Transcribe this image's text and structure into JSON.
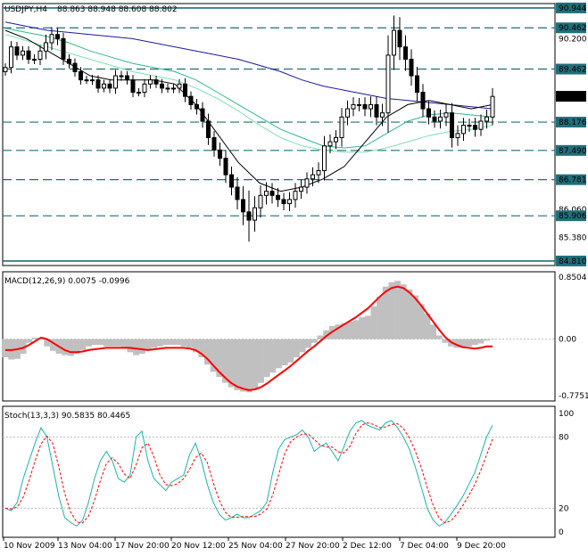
{
  "chart_data": {
    "type": "candlestick",
    "symbol_label": "USDJPY,H4",
    "ohlc_label": "88.863 88.948 88.608 88.802",
    "current_price": "88.802",
    "x_labels": [
      "10 Nov 2009",
      "13 Nov 04:00",
      "17 Nov 20:00",
      "20 Nov 12:00",
      "25 Nov 04:00",
      "27 Nov 20:00",
      "2 Dec 12:00",
      "7 Dec 04:00",
      "9 Dec 20:00"
    ],
    "price_axis": {
      "range": [
        84.7,
        91.05
      ],
      "tick_labels": [
        {
          "value": 90.2,
          "label": "90.200"
        },
        {
          "value": 86.06,
          "label": "86.060"
        },
        {
          "value": 85.38,
          "label": "85.380"
        }
      ],
      "level_labels": [
        {
          "value": 90.944,
          "label": "90.944"
        },
        {
          "value": 90.462,
          "label": "90.462"
        },
        {
          "value": 89.462,
          "label": "89.462"
        },
        {
          "value": 88.176,
          "label": "88.176"
        },
        {
          "value": 87.49,
          "label": "87.490"
        },
        {
          "value": 86.781,
          "label": "86.781"
        },
        {
          "value": 85.906,
          "label": "85.906"
        },
        {
          "value": 84.81,
          "label": "84.810"
        }
      ]
    },
    "levels": [
      {
        "value": 90.944,
        "style": "solid"
      },
      {
        "value": 90.462,
        "style": "dashed"
      },
      {
        "value": 89.462,
        "style": "dashed"
      },
      {
        "value": 88.176,
        "style": "dashed"
      },
      {
        "value": 87.49,
        "style": "dashed"
      },
      {
        "value": 86.781,
        "style": "dashed"
      },
      {
        "value": 85.906,
        "style": "dashed"
      },
      {
        "value": 84.81,
        "style": "solid"
      }
    ],
    "close_series": [
      89.5,
      90.0,
      89.8,
      89.9,
      89.7,
      89.7,
      89.9,
      90.1,
      90.3,
      90.2,
      89.7,
      89.6,
      89.4,
      89.2,
      89.2,
      89.2,
      89.0,
      89.1,
      89.0,
      89.3,
      89.3,
      89.2,
      88.9,
      88.9,
      89.1,
      89.2,
      89.1,
      89.0,
      89.0,
      89.0,
      89.1,
      88.8,
      88.6,
      88.5,
      88.2,
      87.8,
      87.5,
      87.3,
      86.9,
      86.6,
      86.3,
      86.0,
      85.8,
      86.1,
      86.4,
      86.5,
      86.4,
      86.3,
      86.2,
      86.3,
      86.5,
      86.6,
      86.8,
      86.9,
      87.0,
      87.6,
      87.7,
      87.8,
      88.3,
      88.5,
      88.6,
      88.6,
      88.5,
      88.6,
      88.3,
      88.4,
      89.8,
      90.4,
      90.0,
      89.7,
      89.3,
      88.9,
      88.5,
      88.3,
      88.2,
      88.3,
      88.4,
      87.8,
      87.9,
      88.1,
      88.1,
      88.0,
      88.2,
      88.3,
      88.8
    ],
    "ma_lines": [
      {
        "color": "#1a1a9c",
        "values": [
          90.6,
          90.5,
          90.4,
          90.35,
          90.3,
          90.25,
          90.2,
          90.1,
          90.0,
          89.9,
          89.8,
          89.7,
          89.55,
          89.4,
          89.2,
          89.05,
          88.95,
          88.85,
          88.75,
          88.7,
          88.65,
          88.6,
          88.55,
          88.5
        ]
      },
      {
        "color": "#2fb88a",
        "values": [
          90.45,
          90.35,
          90.25,
          90.1,
          89.9,
          89.75,
          89.6,
          89.5,
          89.4,
          89.2,
          88.9,
          88.6,
          88.3,
          88.0,
          87.8,
          87.6,
          87.55,
          87.6,
          87.9,
          88.2,
          88.35,
          88.4,
          88.35,
          88.3
        ]
      },
      {
        "color": "#7fe0b0",
        "values": [
          90.3,
          90.15,
          90.0,
          89.85,
          89.7,
          89.55,
          89.4,
          89.3,
          89.2,
          89.0,
          88.75,
          88.45,
          88.1,
          87.8,
          87.6,
          87.5,
          87.45,
          87.45,
          87.55,
          87.7,
          87.85,
          87.95,
          88.0,
          88.1
        ]
      },
      {
        "color": "#000000",
        "values": [
          90.4,
          90.2,
          89.9,
          89.6,
          89.3,
          89.2,
          89.2,
          89.2,
          89.1,
          88.6,
          87.9,
          87.2,
          86.7,
          86.5,
          86.6,
          86.8,
          87.1,
          87.7,
          88.3,
          88.6,
          88.7,
          88.6,
          88.5,
          88.6
        ]
      }
    ],
    "macd": {
      "label": "MACD(12,26,9) 0.0075 -0.0996",
      "range": [
        -0.7751,
        0.8504
      ],
      "tick_labels": [
        {
          "value": 0.8504,
          "label": "0.8504"
        },
        {
          "value": 0.0,
          "label": "0.00"
        },
        {
          "value": -0.7751,
          "label": "-0.7751"
        }
      ],
      "histogram": [
        -0.25,
        -0.28,
        -0.27,
        -0.2,
        -0.05,
        0.02,
        0.0,
        -0.1,
        -0.16,
        -0.2,
        -0.22,
        -0.23,
        -0.2,
        -0.15,
        -0.1,
        -0.08,
        -0.08,
        -0.1,
        -0.1,
        -0.1,
        -0.12,
        -0.18,
        -0.22,
        -0.2,
        -0.14,
        -0.12,
        -0.1,
        -0.08,
        -0.08,
        -0.08,
        -0.1,
        -0.12,
        -0.18,
        -0.25,
        -0.35,
        -0.45,
        -0.52,
        -0.6,
        -0.66,
        -0.7,
        -0.72,
        -0.73,
        -0.68,
        -0.6,
        -0.52,
        -0.46,
        -0.4,
        -0.36,
        -0.32,
        -0.25,
        -0.18,
        -0.12,
        -0.05,
        0.05,
        0.12,
        0.18,
        0.2,
        0.22,
        0.24,
        0.26,
        0.3,
        0.32,
        0.45,
        0.58,
        0.72,
        0.78,
        0.8,
        0.75,
        0.68,
        0.6,
        0.48,
        0.35,
        0.2,
        0.05,
        -0.05,
        -0.1,
        -0.12,
        -0.12,
        -0.1,
        -0.08,
        -0.06,
        -0.02,
        0.0
      ],
      "signal": [
        -0.15,
        -0.15,
        -0.14,
        -0.12,
        -0.08,
        -0.03,
        0.02,
        0.0,
        -0.05,
        -0.1,
        -0.15,
        -0.18,
        -0.18,
        -0.17,
        -0.15,
        -0.14,
        -0.13,
        -0.12,
        -0.12,
        -0.12,
        -0.12,
        -0.12,
        -0.13,
        -0.14,
        -0.15,
        -0.14,
        -0.13,
        -0.12,
        -0.12,
        -0.12,
        -0.12,
        -0.13,
        -0.15,
        -0.2,
        -0.27,
        -0.36,
        -0.45,
        -0.53,
        -0.6,
        -0.65,
        -0.68,
        -0.7,
        -0.69,
        -0.66,
        -0.61,
        -0.55,
        -0.49,
        -0.43,
        -0.37,
        -0.3,
        -0.23,
        -0.16,
        -0.1,
        -0.03,
        0.04,
        0.1,
        0.15,
        0.2,
        0.25,
        0.3,
        0.36,
        0.42,
        0.5,
        0.58,
        0.65,
        0.7,
        0.72,
        0.7,
        0.64,
        0.56,
        0.46,
        0.35,
        0.24,
        0.13,
        0.03,
        -0.04,
        -0.08,
        -0.11,
        -0.12,
        -0.13,
        -0.12,
        -0.1,
        -0.1
      ]
    },
    "stoch": {
      "label": "Stoch(13,3,3) 90.5835 80.4465",
      "range": [
        0,
        100
      ],
      "tick_labels": [
        {
          "value": 100,
          "label": "100"
        },
        {
          "value": 80,
          "label": "80"
        },
        {
          "value": 20,
          "label": "20"
        },
        {
          "value": 0,
          "label": "0"
        }
      ],
      "levels": [
        80,
        20
      ],
      "main": [
        20,
        18,
        25,
        45,
        60,
        75,
        88,
        80,
        55,
        30,
        12,
        8,
        5,
        10,
        25,
        45,
        60,
        68,
        60,
        45,
        42,
        48,
        80,
        85,
        60,
        45,
        40,
        35,
        42,
        45,
        48,
        65,
        75,
        60,
        40,
        25,
        15,
        10,
        12,
        15,
        12,
        12,
        15,
        18,
        25,
        50,
        70,
        78,
        80,
        82,
        86,
        80,
        68,
        72,
        75,
        68,
        60,
        72,
        85,
        92,
        94,
        90,
        88,
        86,
        92,
        94,
        88,
        80,
        70,
        55,
        38,
        20,
        10,
        5,
        8,
        15,
        22,
        30,
        40,
        50,
        65,
        80,
        90
      ]
    }
  }
}
